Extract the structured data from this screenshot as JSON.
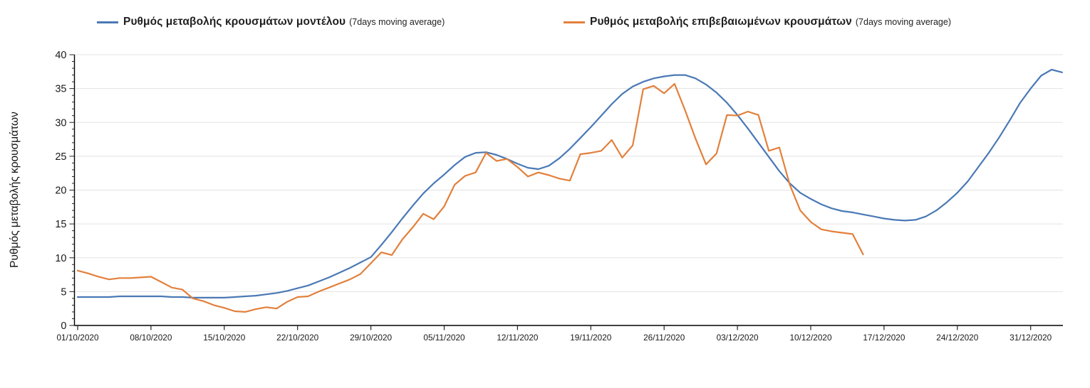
{
  "chart_data": {
    "type": "line",
    "title": "",
    "xlabel": "",
    "ylabel": "Ρυθμός μεταβολής κρουσμάτων",
    "ylim": [
      0,
      40
    ],
    "y_major_step": 5,
    "y_minor_step": 1,
    "grid": "horizontal-major-only",
    "legend_position": "top",
    "axis_color": "#000000",
    "gridline_color": "#e3e3e3",
    "tick_label_color": "#1a1a1a",
    "x_tick_interval_days": 7,
    "x_tick_labels": [
      "01/10/2020",
      "08/10/2020",
      "15/10/2020",
      "22/10/2020",
      "29/10/2020",
      "05/11/2020",
      "12/11/2020",
      "19/11/2020",
      "26/11/2020",
      "03/12/2020",
      "10/12/2020",
      "17/12/2020",
      "24/12/2020",
      "31/12/2020"
    ],
    "y_tick_labels": [
      "0",
      "5",
      "10",
      "15",
      "20",
      "25",
      "30",
      "35",
      "40"
    ],
    "series": [
      {
        "id": "model",
        "name": "Ρυθμός μεταβολής κρουσμάτων μοντέλου",
        "name_suffix": "(7days moving average)",
        "color": "#4a79b5",
        "start_date": "01/10/2020",
        "values": [
          4.2,
          4.2,
          4.2,
          4.2,
          4.3,
          4.3,
          4.3,
          4.3,
          4.3,
          4.2,
          4.2,
          4.1,
          4.1,
          4.1,
          4.1,
          4.2,
          4.3,
          4.4,
          4.6,
          4.8,
          5.1,
          5.5,
          5.9,
          6.5,
          7.1,
          7.8,
          8.5,
          9.3,
          10.1,
          11.9,
          13.8,
          15.8,
          17.7,
          19.5,
          21.0,
          22.3,
          23.7,
          24.9,
          25.5,
          25.6,
          25.2,
          24.6,
          23.9,
          23.3,
          23.1,
          23.6,
          24.7,
          26.1,
          27.7,
          29.3,
          31.0,
          32.7,
          34.2,
          35.3,
          36.0,
          36.5,
          36.8,
          37.0,
          37.0,
          36.5,
          35.6,
          34.4,
          32.9,
          31.1,
          29.1,
          27.0,
          24.9,
          22.8,
          21.0,
          19.6,
          18.7,
          17.9,
          17.3,
          16.9,
          16.7,
          16.4,
          16.1,
          15.8,
          15.6,
          15.5,
          15.6,
          16.1,
          17.0,
          18.2,
          19.6,
          21.3,
          23.4,
          25.5,
          27.8,
          30.3,
          32.9,
          35.0,
          36.9,
          37.8,
          37.4
        ]
      },
      {
        "id": "confirmed",
        "name": "Ρυθμός μεταβολής επιβεβαιωμένων κρουσμάτων",
        "name_suffix": "(7days moving average)",
        "color": "#e2803c",
        "start_date": "01/10/2020",
        "values": [
          8.1,
          7.7,
          7.2,
          6.8,
          7.0,
          7.0,
          7.1,
          7.2,
          6.4,
          5.6,
          5.3,
          4.0,
          3.6,
          3.0,
          2.6,
          2.1,
          2.0,
          2.4,
          2.7,
          2.5,
          3.5,
          4.2,
          4.3,
          5.0,
          5.6,
          6.2,
          6.8,
          7.6,
          9.2,
          10.8,
          10.4,
          12.7,
          14.5,
          16.5,
          15.7,
          17.6,
          20.8,
          22.1,
          22.6,
          25.5,
          24.3,
          24.6,
          23.4,
          22.0,
          22.6,
          22.2,
          21.7,
          21.4,
          25.3,
          25.5,
          25.8,
          27.4,
          24.8,
          26.6,
          34.9,
          35.4,
          34.3,
          35.7,
          31.8,
          27.6,
          23.8,
          25.4,
          31.1,
          31.0,
          31.6,
          31.1,
          25.8,
          26.3,
          20.8,
          17.0,
          15.3,
          14.2,
          13.9,
          13.7,
          13.5,
          10.5
        ]
      }
    ]
  }
}
